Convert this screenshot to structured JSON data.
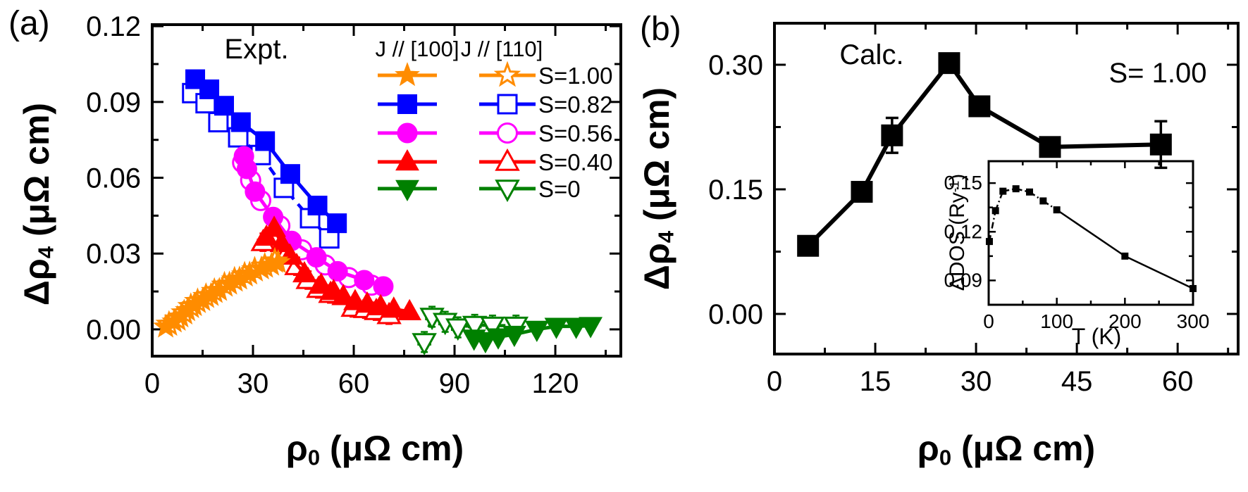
{
  "figure": {
    "panel_a_tag": "(a)",
    "panel_b_tag": "(b)",
    "background": "#ffffff",
    "colors": {
      "s100": "#FF8C00",
      "s082": "#0000FF",
      "s056": "#FF00FF",
      "s040": "#FF0000",
      "s0": "#008000",
      "calc": "#000000"
    }
  },
  "chart_data": [
    {
      "id": "panel-a",
      "type": "scatter",
      "annotation": "Expt.",
      "xlabel": {
        "base": "ρ",
        "sub": "0",
        "unit": " (μΩ cm)"
      },
      "ylabel": {
        "base": "Δρ",
        "sub": "4",
        "unit": " (μΩ cm)"
      },
      "xlim": [
        0,
        139.5
      ],
      "ylim": [
        -0.0106,
        0.1206
      ],
      "xticks": {
        "major": [
          0,
          30,
          60,
          90,
          120
        ],
        "minor": [
          15,
          45,
          75,
          105,
          135
        ],
        "labels": [
          "0",
          "30",
          "60",
          "90",
          "120"
        ]
      },
      "yticks": {
        "major": [
          0,
          0.03,
          0.06,
          0.09,
          0.12
        ],
        "minor": [
          0.015,
          0.045,
          0.075,
          0.105
        ],
        "labels": [
          "0.00",
          "0.03",
          "0.06",
          "0.09",
          "0.12"
        ]
      },
      "legend": {
        "col1_header": "J // [100]",
        "col2_header": "J // [110]",
        "entries": [
          {
            "label": "S=1.00",
            "color": "#FF8C00",
            "marker": "star"
          },
          {
            "label": "S=0.82",
            "color": "#0000FF",
            "marker": "square"
          },
          {
            "label": "S=0.56",
            "color": "#FF00FF",
            "marker": "circle"
          },
          {
            "label": "S=0.40",
            "color": "#FF0000",
            "marker": "triangle-up"
          },
          {
            "label": "S=0",
            "color": "#008000",
            "marker": "triangle-down"
          }
        ]
      },
      "series": [
        {
          "name": "S=0.82 J//[110]",
          "color": "#0000FF",
          "marker": "square",
          "filled": false,
          "line": "dash",
          "err_y": 0.0035,
          "err_x": 1.6,
          "points": [
            [
              11.9,
              0.0935
            ],
            [
              15.9,
              0.0895
            ],
            [
              19.7,
              0.082
            ],
            [
              25.6,
              0.076
            ],
            [
              32.3,
              0.069
            ],
            [
              39.2,
              0.056
            ],
            [
              47.0,
              0.044
            ],
            [
              52.7,
              0.036
            ]
          ]
        },
        {
          "name": "S=0.82 J//[100]",
          "color": "#0000FF",
          "marker": "square",
          "filled": true,
          "line": "solid",
          "points": [
            [
              12.8,
              0.099
            ],
            [
              17.0,
              0.095
            ],
            [
              21.4,
              0.0885
            ],
            [
              26.4,
              0.082
            ],
            [
              33.6,
              0.0745
            ],
            [
              41.1,
              0.0615
            ],
            [
              49.2,
              0.049
            ],
            [
              55.0,
              0.042
            ]
          ]
        },
        {
          "name": "S=0.56 J//[110]",
          "color": "#FF00FF",
          "marker": "circle",
          "filled": false,
          "line": "dash",
          "err_y": 0.003,
          "err_x": 1.6,
          "points": [
            [
              26.9,
              0.066
            ],
            [
              29.3,
              0.059
            ],
            [
              32.3,
              0.051
            ],
            [
              38.0,
              0.041
            ],
            [
              44.5,
              0.0315
            ],
            [
              51.5,
              0.0255
            ],
            [
              58.5,
              0.0205
            ],
            [
              65.3,
              0.0175
            ]
          ]
        },
        {
          "name": "S=0.56 J//[100]",
          "color": "#FF00FF",
          "marker": "circle",
          "filled": true,
          "line": "solid",
          "points": [
            [
              27.3,
              0.0685
            ],
            [
              28.2,
              0.0635
            ],
            [
              30.6,
              0.0545
            ],
            [
              36.0,
              0.0445
            ],
            [
              41.5,
              0.035
            ],
            [
              48.9,
              0.0285
            ],
            [
              55.2,
              0.023
            ],
            [
              63.1,
              0.0195
            ],
            [
              68.8,
              0.017
            ]
          ]
        },
        {
          "name": "S=0.40 J//[110]",
          "color": "#FF0000",
          "marker": "triangle-up",
          "filled": false,
          "line": "dash",
          "err_y": 0.0035,
          "err_x": 1.6,
          "points": [
            [
              33.0,
              0.0345
            ],
            [
              36.8,
              0.0375
            ],
            [
              40.0,
              0.03
            ],
            [
              43.0,
              0.025
            ],
            [
              46.4,
              0.0195
            ],
            [
              49.5,
              0.016
            ],
            [
              53.1,
              0.014
            ],
            [
              59.8,
              0.0085
            ],
            [
              63.5,
              0.008
            ],
            [
              66.7,
              0.0072
            ],
            [
              70.5,
              0.0056
            ]
          ]
        },
        {
          "name": "S=0.40 J//[100]",
          "color": "#FF0000",
          "marker": "triangle-up",
          "filled": true,
          "line": "solid",
          "points": [
            [
              34.0,
              0.0365
            ],
            [
              36.3,
              0.04
            ],
            [
              38.5,
              0.034
            ],
            [
              41.0,
              0.029
            ],
            [
              45.3,
              0.022
            ],
            [
              50.3,
              0.0175
            ],
            [
              54.0,
              0.015
            ],
            [
              56.9,
              0.013
            ],
            [
              60.4,
              0.011
            ],
            [
              64.0,
              0.01
            ],
            [
              68.0,
              0.009
            ],
            [
              71.9,
              0.008
            ],
            [
              76.6,
              0.007
            ]
          ]
        },
        {
          "name": "S=1.00 J//[110]",
          "color": "#FF8C00",
          "marker": "star",
          "filled": false,
          "line": "dash",
          "err_y": 0.0028,
          "err_x": 1.4,
          "points": [
            [
              5.0,
              0.002
            ],
            [
              7.5,
              0.004
            ],
            [
              9.5,
              0.0065
            ],
            [
              11.5,
              0.009
            ],
            [
              13.5,
              0.011
            ],
            [
              16.0,
              0.013
            ],
            [
              18.5,
              0.015
            ],
            [
              21.5,
              0.0175
            ],
            [
              24.5,
              0.0195
            ],
            [
              27.5,
              0.0215
            ],
            [
              30.5,
              0.0235
            ],
            [
              33.5,
              0.025
            ],
            [
              36.5,
              0.027
            ]
          ]
        },
        {
          "name": "S=1.00 J//[100]",
          "color": "#FF8C00",
          "marker": "star",
          "filled": true,
          "line": "solid",
          "points": [
            [
              4.0,
              0.001
            ],
            [
              6.5,
              0.003
            ],
            [
              8.5,
              0.005
            ],
            [
              10.5,
              0.0075
            ],
            [
              12.5,
              0.0095
            ],
            [
              15.0,
              0.0115
            ],
            [
              17.5,
              0.0135
            ],
            [
              20.0,
              0.0155
            ],
            [
              23.0,
              0.018
            ],
            [
              26.0,
              0.02
            ],
            [
              29.0,
              0.022
            ],
            [
              32.5,
              0.024
            ],
            [
              35.5,
              0.0255
            ],
            [
              37.5,
              0.0265
            ]
          ]
        },
        {
          "name": "S=0 J//[110]",
          "color": "#008000",
          "marker": "triangle-down",
          "filled": false,
          "line": "dash",
          "err_y": 0.004,
          "err_x": 1.8,
          "points": [
            [
              81.0,
              -0.005
            ],
            [
              83.3,
              0.005
            ],
            [
              87.2,
              0.003
            ],
            [
              91.0,
              0.0008
            ],
            [
              96.0,
              0.0018
            ],
            [
              101.3,
              0.0015
            ],
            [
              108.3,
              0.0015
            ]
          ]
        },
        {
          "name": "S=0 J//[100]",
          "color": "#008000",
          "marker": "triangle-down",
          "filled": true,
          "line": "solid",
          "points": [
            [
              95.8,
              -0.0035
            ],
            [
              99.2,
              -0.0045
            ],
            [
              103.0,
              -0.003
            ],
            [
              107.8,
              -0.002
            ],
            [
              114.5,
              0.0
            ],
            [
              120.3,
              0.0012
            ],
            [
              126.2,
              0.0012
            ],
            [
              130.5,
              0.0015
            ]
          ]
        }
      ]
    },
    {
      "id": "panel-b",
      "type": "line",
      "annotation": "Calc.",
      "annotation2": "S= 1.00",
      "xlabel": {
        "base": "ρ",
        "sub": "0",
        "unit": " (μΩ cm)"
      },
      "ylabel": {
        "base": "Δρ",
        "sub": "4",
        "unit": " (μΩ cm)"
      },
      "xlim": [
        0,
        69
      ],
      "ylim": [
        -0.0483,
        0.35
      ],
      "xticks": {
        "major": [
          0,
          15,
          30,
          45,
          60
        ],
        "minor": [
          7.5,
          22.5,
          37.5,
          52.5,
          67.5
        ],
        "labels": [
          "0",
          "15",
          "30",
          "45",
          "60"
        ]
      },
      "yticks": {
        "major": [
          0,
          0.15,
          0.3
        ],
        "minor": [
          0.075,
          0.225
        ],
        "labels": [
          "0.00",
          "0.15",
          "0.30"
        ]
      },
      "series": [
        {
          "name": "Calc. S=1.00",
          "color": "#000000",
          "marker": "square",
          "filled": true,
          "line": "solid",
          "points": [
            [
              5.0,
              0.082
            ],
            [
              13.0,
              0.147
            ],
            [
              17.5,
              0.215
            ],
            [
              26.0,
              0.302
            ],
            [
              30.5,
              0.25
            ],
            [
              41.0,
              0.201
            ],
            [
              57.5,
              0.204
            ]
          ],
          "point_errors": [
            null,
            null,
            0.021,
            null,
            null,
            null,
            0.028
          ]
        }
      ]
    },
    {
      "id": "inset",
      "type": "line",
      "xlabel": {
        "text": "T (K)"
      },
      "ylabel": {
        "base": "ΔDOS (Ry",
        "sup": "-1",
        "unit": ")"
      },
      "xlim": [
        0,
        300
      ],
      "ylim": [
        0.075,
        0.1635
      ],
      "xticks": {
        "major": [
          0,
          100,
          200,
          300
        ],
        "minor": [
          50,
          150,
          250
        ],
        "labels": [
          "0",
          "100",
          "200",
          "300"
        ]
      },
      "yticks": {
        "major": [
          0.09,
          0.12,
          0.15
        ],
        "minor": [
          0.105,
          0.135
        ],
        "labels": [
          "0.09",
          "0.12",
          "0.15"
        ]
      },
      "series": [
        {
          "name": "ΔDOS vs T",
          "color": "#000000",
          "marker": "square",
          "filled": true,
          "line": "dashdot",
          "dash_until": 6,
          "points": [
            [
              1,
              0.114
            ],
            [
              10,
              0.133
            ],
            [
              21,
              0.145
            ],
            [
              40,
              0.1465
            ],
            [
              60,
              0.1445
            ],
            [
              80,
              0.139
            ],
            [
              100,
              0.1335
            ],
            [
              200,
              0.105
            ],
            [
              300,
              0.085
            ]
          ]
        }
      ]
    }
  ]
}
